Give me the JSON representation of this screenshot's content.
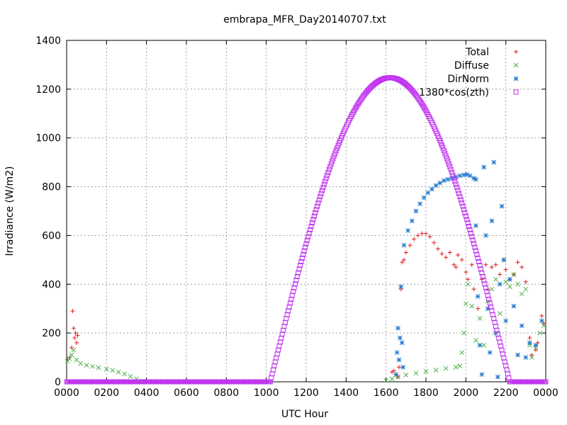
{
  "chart_data": {
    "type": "scatter",
    "title": "embrapa_MFR_Day20140707.txt",
    "xlabel": "UTC Hour",
    "ylabel": "Irradiance (W/m2)",
    "xlim": [
      0,
      24
    ],
    "ylim": [
      0,
      1400
    ],
    "grid": true,
    "legend_position": "top-right",
    "x_ticks": [
      {
        "value": 0,
        "label": "0000"
      },
      {
        "value": 2,
        "label": "0200"
      },
      {
        "value": 4,
        "label": "0400"
      },
      {
        "value": 6,
        "label": "0600"
      },
      {
        "value": 8,
        "label": "0800"
      },
      {
        "value": 10,
        "label": "1000"
      },
      {
        "value": 12,
        "label": "1200"
      },
      {
        "value": 14,
        "label": "1400"
      },
      {
        "value": 16,
        "label": "1600"
      },
      {
        "value": 18,
        "label": "1800"
      },
      {
        "value": 20,
        "label": "2000"
      },
      {
        "value": 22,
        "label": "2200"
      },
      {
        "value": 24,
        "label": "0000"
      }
    ],
    "y_ticks": [
      {
        "value": 0,
        "label": "0"
      },
      {
        "value": 200,
        "label": "200"
      },
      {
        "value": 400,
        "label": "400"
      },
      {
        "value": 600,
        "label": "600"
      },
      {
        "value": 800,
        "label": "800"
      },
      {
        "value": 1000,
        "label": "1000"
      },
      {
        "value": 1200,
        "label": "1200"
      },
      {
        "value": 1400,
        "label": "1400"
      }
    ],
    "series": [
      {
        "name": "Total",
        "marker": "plus",
        "color": "#e41a1c",
        "points": [
          [
            0.05,
            90
          ],
          [
            0.15,
            100
          ],
          [
            0.25,
            140
          ],
          [
            0.3,
            290
          ],
          [
            0.35,
            220
          ],
          [
            0.4,
            180
          ],
          [
            0.45,
            200
          ],
          [
            0.5,
            160
          ],
          [
            0.55,
            190
          ],
          [
            16.3,
            40
          ],
          [
            16.4,
            45
          ],
          [
            16.5,
            30
          ],
          [
            16.6,
            20
          ],
          [
            16.65,
            60
          ],
          [
            16.75,
            380
          ],
          [
            16.8,
            490
          ],
          [
            16.9,
            500
          ],
          [
            17.0,
            530
          ],
          [
            17.2,
            560
          ],
          [
            17.4,
            585
          ],
          [
            17.6,
            600
          ],
          [
            17.8,
            608
          ],
          [
            18.0,
            608
          ],
          [
            18.2,
            595
          ],
          [
            18.4,
            570
          ],
          [
            18.6,
            545
          ],
          [
            18.8,
            525
          ],
          [
            19.0,
            510
          ],
          [
            19.2,
            530
          ],
          [
            19.4,
            480
          ],
          [
            19.5,
            470
          ],
          [
            19.6,
            520
          ],
          [
            19.8,
            500
          ],
          [
            20.0,
            450
          ],
          [
            20.1,
            420
          ],
          [
            20.3,
            480
          ],
          [
            20.4,
            380
          ],
          [
            20.6,
            300
          ],
          [
            20.8,
            420
          ],
          [
            21.0,
            480
          ],
          [
            21.1,
            380
          ],
          [
            21.3,
            470
          ],
          [
            21.5,
            480
          ],
          [
            21.7,
            440
          ],
          [
            21.9,
            500
          ],
          [
            22.0,
            460
          ],
          [
            22.2,
            420
          ],
          [
            22.4,
            440
          ],
          [
            22.6,
            490
          ],
          [
            22.8,
            470
          ],
          [
            23.0,
            410
          ],
          [
            23.2,
            180
          ],
          [
            23.3,
            110
          ],
          [
            23.5,
            130
          ],
          [
            23.6,
            160
          ],
          [
            23.8,
            270
          ],
          [
            23.9,
            240
          ]
        ]
      },
      {
        "name": "Diffuse",
        "marker": "cross",
        "color": "#4daf4a",
        "points": [
          [
            0.05,
            85
          ],
          [
            0.15,
            95
          ],
          [
            0.25,
            110
          ],
          [
            0.35,
            130
          ],
          [
            0.5,
            90
          ],
          [
            0.7,
            75
          ],
          [
            1.0,
            68
          ],
          [
            1.3,
            63
          ],
          [
            1.6,
            58
          ],
          [
            2.0,
            52
          ],
          [
            2.3,
            47
          ],
          [
            2.6,
            40
          ],
          [
            2.9,
            32
          ],
          [
            3.2,
            22
          ],
          [
            3.5,
            12
          ],
          [
            3.8,
            3
          ],
          [
            16.0,
            5
          ],
          [
            16.3,
            12
          ],
          [
            16.6,
            20
          ],
          [
            17.0,
            28
          ],
          [
            17.5,
            35
          ],
          [
            18.0,
            42
          ],
          [
            18.5,
            48
          ],
          [
            19.0,
            55
          ],
          [
            19.5,
            60
          ],
          [
            19.7,
            65
          ],
          [
            19.8,
            120
          ],
          [
            19.9,
            200
          ],
          [
            20.0,
            320
          ],
          [
            20.1,
            400
          ],
          [
            20.3,
            310
          ],
          [
            20.5,
            170
          ],
          [
            20.7,
            260
          ],
          [
            20.9,
            150
          ],
          [
            21.1,
            330
          ],
          [
            21.3,
            380
          ],
          [
            21.5,
            420
          ],
          [
            21.7,
            280
          ],
          [
            22.0,
            410
          ],
          [
            22.2,
            390
          ],
          [
            22.4,
            440
          ],
          [
            22.6,
            400
          ],
          [
            22.8,
            360
          ],
          [
            23.0,
            380
          ],
          [
            23.2,
            150
          ],
          [
            23.3,
            100
          ],
          [
            23.5,
            140
          ],
          [
            23.7,
            200
          ],
          [
            23.9,
            230
          ]
        ]
      },
      {
        "name": "DirNorm",
        "marker": "star",
        "color": "#1f78d1",
        "points": [
          [
            16.5,
            30
          ],
          [
            16.55,
            120
          ],
          [
            16.6,
            220
          ],
          [
            16.65,
            90
          ],
          [
            16.7,
            180
          ],
          [
            16.75,
            390
          ],
          [
            16.8,
            160
          ],
          [
            16.85,
            60
          ],
          [
            16.9,
            560
          ],
          [
            17.1,
            620
          ],
          [
            17.3,
            660
          ],
          [
            17.5,
            700
          ],
          [
            17.7,
            730
          ],
          [
            17.9,
            755
          ],
          [
            18.1,
            775
          ],
          [
            18.3,
            790
          ],
          [
            18.5,
            805
          ],
          [
            18.7,
            815
          ],
          [
            18.9,
            825
          ],
          [
            19.1,
            830
          ],
          [
            19.3,
            835
          ],
          [
            19.5,
            840
          ],
          [
            19.7,
            845
          ],
          [
            19.9,
            848
          ],
          [
            20.05,
            850
          ],
          [
            20.2,
            845
          ],
          [
            20.4,
            835
          ],
          [
            20.5,
            830
          ],
          [
            20.5,
            640
          ],
          [
            20.6,
            350
          ],
          [
            20.7,
            150
          ],
          [
            20.8,
            30
          ],
          [
            20.9,
            880
          ],
          [
            21.0,
            600
          ],
          [
            21.1,
            300
          ],
          [
            21.2,
            120
          ],
          [
            21.3,
            660
          ],
          [
            21.4,
            900
          ],
          [
            21.5,
            200
          ],
          [
            21.6,
            20
          ],
          [
            21.7,
            400
          ],
          [
            21.8,
            720
          ],
          [
            21.9,
            500
          ],
          [
            22.0,
            250
          ],
          [
            22.2,
            420
          ],
          [
            22.4,
            310
          ],
          [
            22.6,
            110
          ],
          [
            22.8,
            230
          ],
          [
            23.0,
            100
          ],
          [
            23.2,
            160
          ],
          [
            23.5,
            150
          ],
          [
            23.8,
            250
          ]
        ]
      },
      {
        "name": "1380*cos(zth)",
        "marker": "square",
        "color": "#bf2fef",
        "sun": {
          "rise_hour": 10.2,
          "noon_hour": 16.2,
          "set_hour": 22.2,
          "peak": 1247
        }
      }
    ]
  }
}
